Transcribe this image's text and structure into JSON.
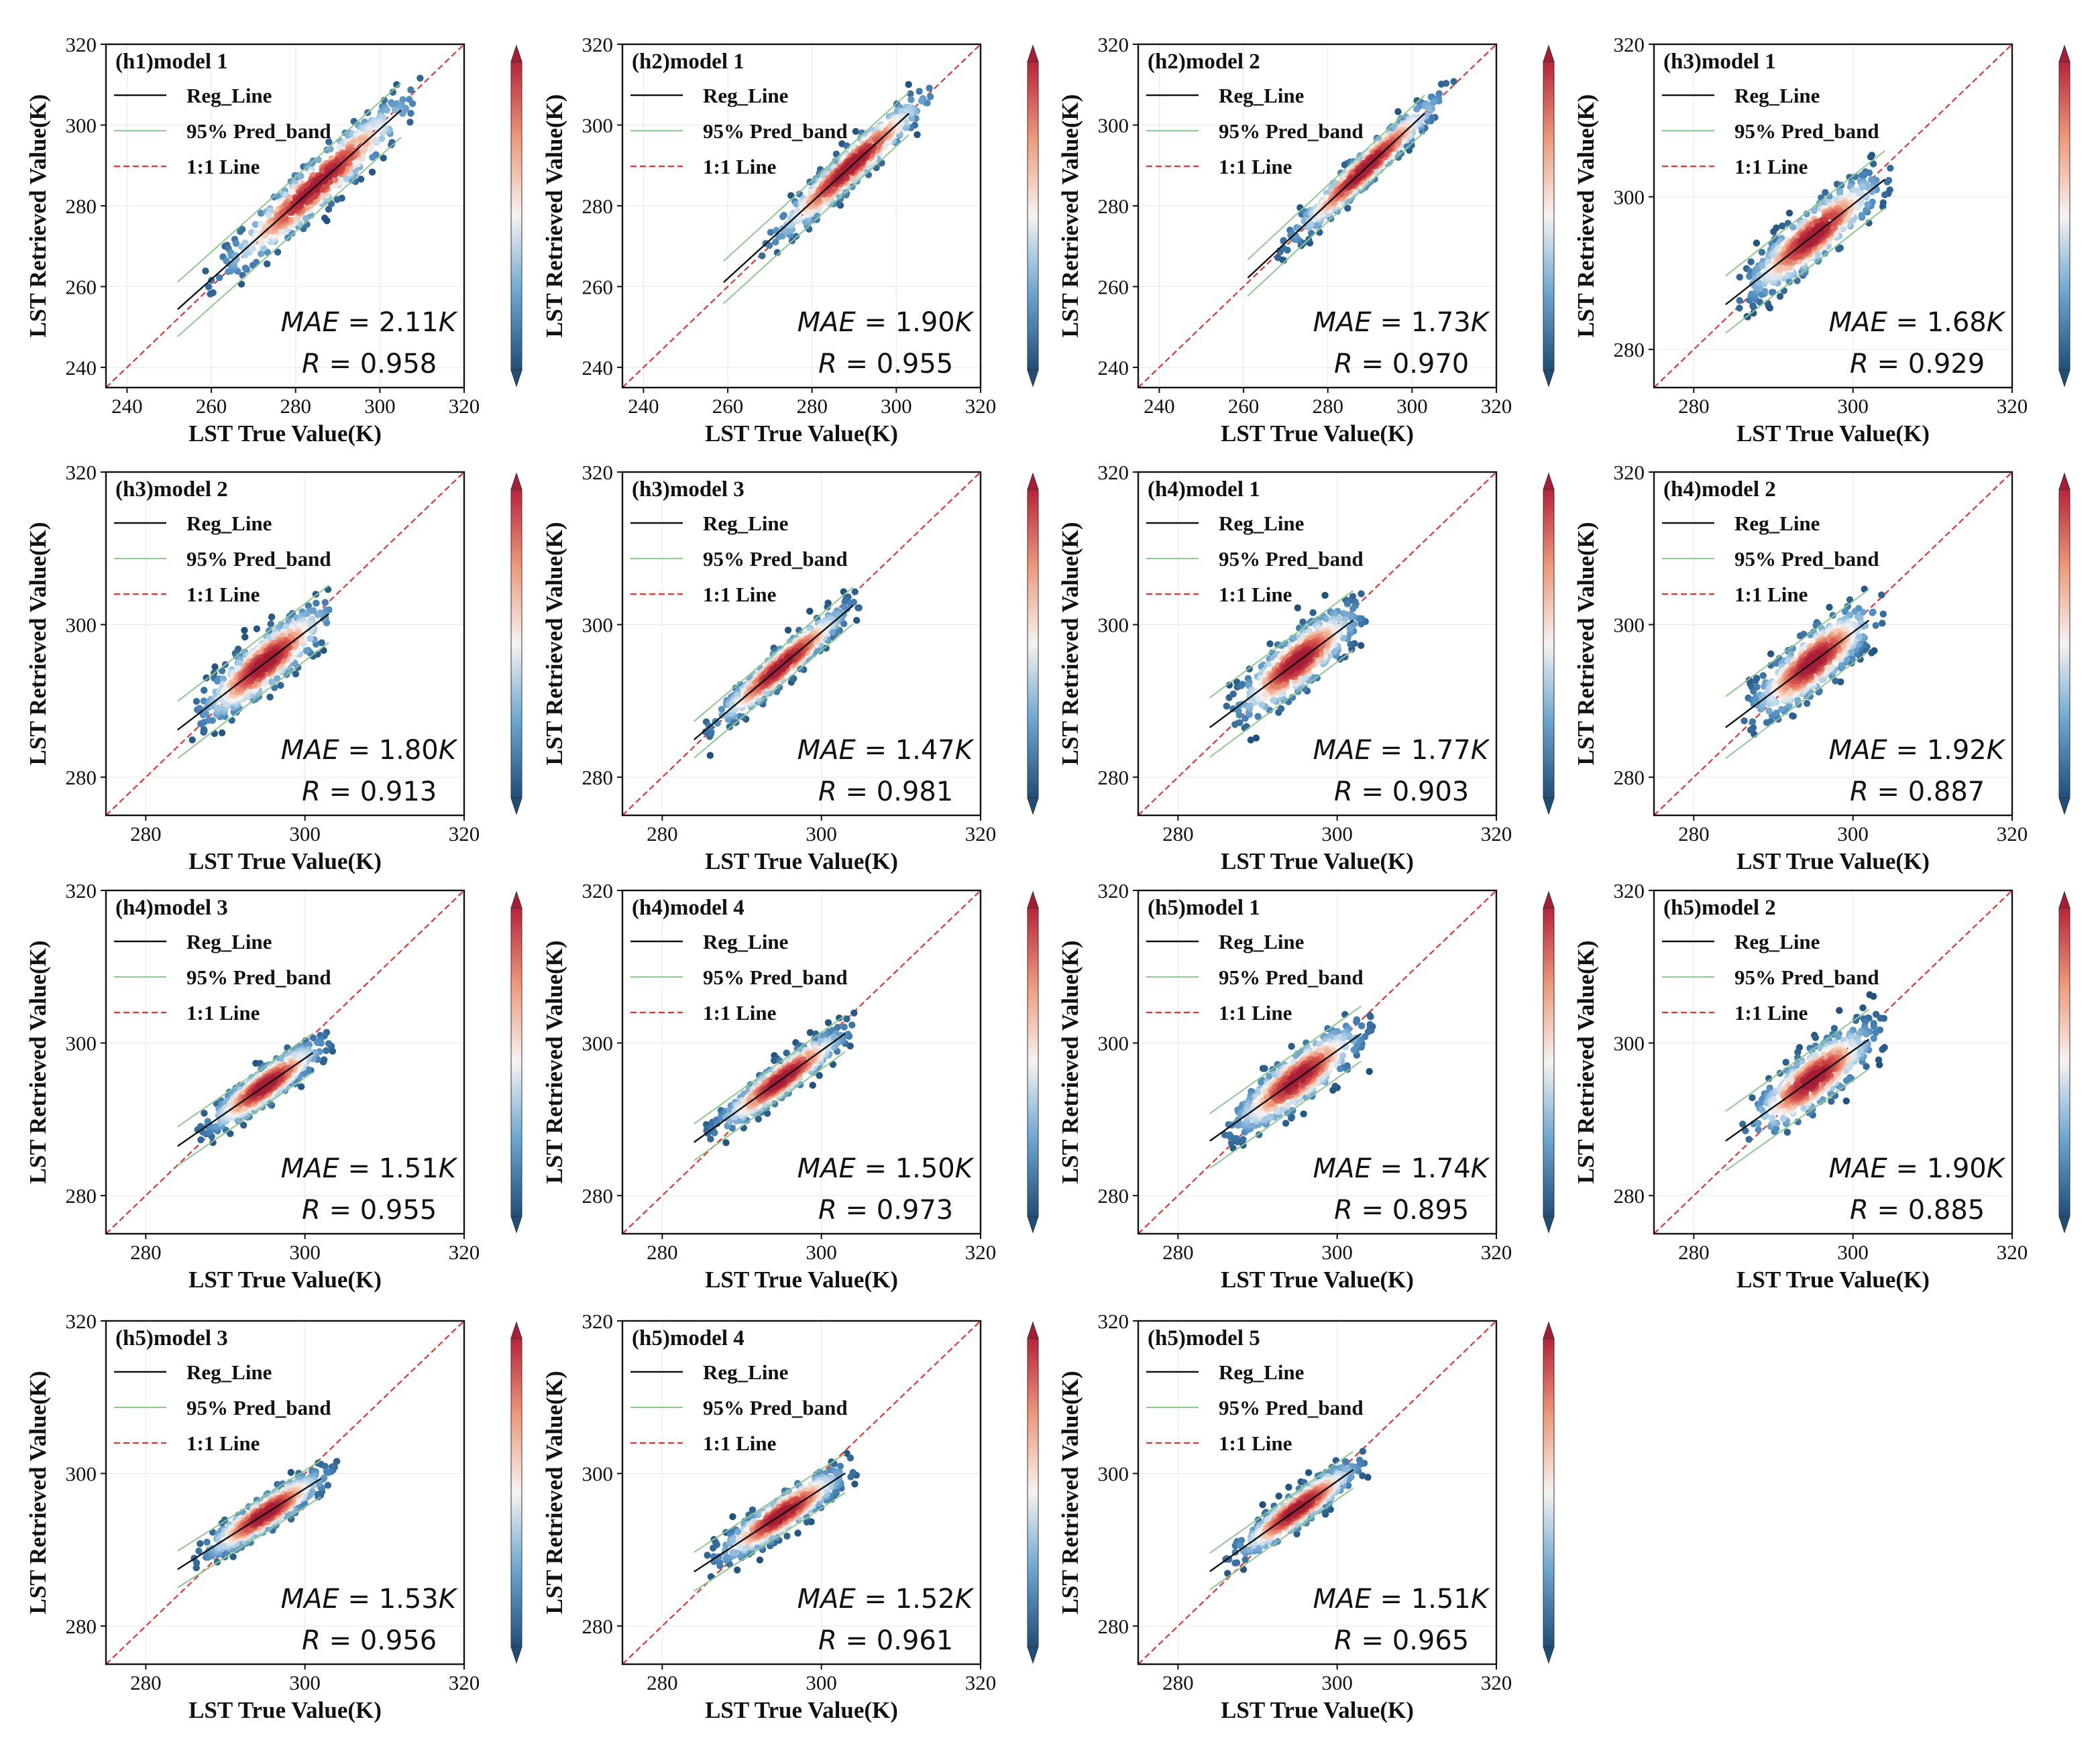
{
  "figure": {
    "common": {
      "x_label": "LST True Value(K)",
      "y_label": "LST Retrieved Value(K)",
      "legend": [
        "Reg_Line",
        "95% Pred_band",
        "1:1 Line"
      ],
      "mae_prefix": "MAE",
      "r_prefix": "R",
      "colors": {
        "reg": "#111111",
        "band": "#8fc88f",
        "oneone": "#e8312f",
        "point_low": "#2b5b93",
        "point_high": "#b8233a"
      }
    }
  },
  "chart_data": [
    {
      "type": "scatter",
      "title": "(h1)model 1",
      "xlim": [
        235,
        320
      ],
      "ylim": [
        235,
        320
      ],
      "x_ticks": [
        240,
        260,
        280,
        300,
        320
      ],
      "y_ticks": [
        240,
        260,
        280,
        300,
        320
      ],
      "mae": "2.11",
      "mae_unit": "K",
      "r": "0.958",
      "x_range": [
        252,
        305
      ],
      "center": 285,
      "spread": 4.5,
      "slope": 0.93,
      "intercept": 20
    },
    {
      "type": "scatter",
      "title": "(h2)model 1",
      "xlim": [
        235,
        320
      ],
      "ylim": [
        235,
        320
      ],
      "x_ticks": [
        240,
        260,
        280,
        300,
        320
      ],
      "y_ticks": [
        240,
        260,
        280,
        300,
        320
      ],
      "mae": "1.90",
      "mae_unit": "K",
      "r": "0.955",
      "x_range": [
        259,
        303
      ],
      "center": 289,
      "spread": 3.5,
      "slope": 0.95,
      "intercept": 15
    },
    {
      "type": "scatter",
      "title": "(h2)model 2",
      "xlim": [
        235,
        320
      ],
      "ylim": [
        235,
        320
      ],
      "x_ticks": [
        240,
        260,
        280,
        300,
        320
      ],
      "y_ticks": [
        240,
        260,
        280,
        300,
        320
      ],
      "mae": "1.73",
      "mae_unit": "K",
      "r": "0.970",
      "x_range": [
        261,
        303
      ],
      "center": 289,
      "spread": 3.0,
      "slope": 0.97,
      "intercept": 9
    },
    {
      "type": "scatter",
      "title": "(h3)model 1",
      "xlim": [
        275,
        320
      ],
      "ylim": [
        275,
        320
      ],
      "x_ticks": [
        280,
        300,
        320
      ],
      "y_ticks": [
        280,
        300,
        320
      ],
      "mae": "1.68",
      "mae_unit": "K",
      "r": "0.929",
      "x_range": [
        284,
        304
      ],
      "center": 295,
      "spread": 2.5,
      "slope": 0.82,
      "intercept": 53
    },
    {
      "type": "scatter",
      "title": "(h3)model 2",
      "xlim": [
        275,
        320
      ],
      "ylim": [
        275,
        320
      ],
      "x_ticks": [
        280,
        300,
        320
      ],
      "y_ticks": [
        280,
        300,
        320
      ],
      "mae": "1.80",
      "mae_unit": "K",
      "r": "0.913",
      "x_range": [
        284,
        303
      ],
      "center": 295,
      "spread": 2.5,
      "slope": 0.8,
      "intercept": 59
    },
    {
      "type": "scatter",
      "title": "(h3)model 3",
      "xlim": [
        275,
        320
      ],
      "ylim": [
        275,
        320
      ],
      "x_ticks": [
        280,
        300,
        320
      ],
      "y_ticks": [
        280,
        300,
        320
      ],
      "mae": "1.47",
      "mae_unit": "K",
      "r": "0.981",
      "x_range": [
        284,
        304
      ],
      "center": 295,
      "spread": 1.6,
      "slope": 0.88,
      "intercept": 35
    },
    {
      "type": "scatter",
      "title": "(h4)model 1",
      "xlim": [
        275,
        320
      ],
      "ylim": [
        275,
        320
      ],
      "x_ticks": [
        280,
        300,
        320
      ],
      "y_ticks": [
        280,
        300,
        320
      ],
      "mae": "1.77",
      "mae_unit": "K",
      "r": "0.903",
      "x_range": [
        284,
        302
      ],
      "center": 295,
      "spread": 2.6,
      "slope": 0.78,
      "intercept": 65
    },
    {
      "type": "scatter",
      "title": "(h4)model 2",
      "xlim": [
        275,
        320
      ],
      "ylim": [
        275,
        320
      ],
      "x_ticks": [
        280,
        300,
        320
      ],
      "y_ticks": [
        280,
        300,
        320
      ],
      "mae": "1.92",
      "mae_unit": "K",
      "r": "0.887",
      "x_range": [
        284,
        302
      ],
      "center": 295,
      "spread": 2.7,
      "slope": 0.78,
      "intercept": 65
    },
    {
      "type": "scatter",
      "title": "(h4)model 3",
      "xlim": [
        275,
        320
      ],
      "ylim": [
        275,
        320
      ],
      "x_ticks": [
        280,
        300,
        320
      ],
      "y_ticks": [
        280,
        300,
        320
      ],
      "mae": "1.51",
      "mae_unit": "K",
      "r": "0.955",
      "x_range": [
        284,
        301
      ],
      "center": 295,
      "spread": 1.7,
      "slope": 0.72,
      "intercept": 82
    },
    {
      "type": "scatter",
      "title": "(h4)model 4",
      "xlim": [
        275,
        320
      ],
      "ylim": [
        275,
        320
      ],
      "x_ticks": [
        280,
        300,
        320
      ],
      "y_ticks": [
        280,
        300,
        320
      ],
      "mae": "1.50",
      "mae_unit": "K",
      "r": "0.973",
      "x_range": [
        284,
        303
      ],
      "center": 295,
      "spread": 1.6,
      "slope": 0.75,
      "intercept": 74
    },
    {
      "type": "scatter",
      "title": "(h5)model 1",
      "xlim": [
        275,
        320
      ],
      "ylim": [
        275,
        320
      ],
      "x_ticks": [
        280,
        300,
        320
      ],
      "y_ticks": [
        280,
        300,
        320
      ],
      "mae": "1.74",
      "mae_unit": "K",
      "r": "0.895",
      "x_range": [
        284,
        303
      ],
      "center": 295,
      "spread": 2.4,
      "slope": 0.74,
      "intercept": 77
    },
    {
      "type": "scatter",
      "title": "(h5)model 2",
      "xlim": [
        275,
        320
      ],
      "ylim": [
        275,
        320
      ],
      "x_ticks": [
        280,
        300,
        320
      ],
      "y_ticks": [
        280,
        300,
        320
      ],
      "mae": "1.90",
      "mae_unit": "K",
      "r": "0.885",
      "x_range": [
        284,
        302
      ],
      "center": 295,
      "spread": 2.6,
      "slope": 0.74,
      "intercept": 77
    },
    {
      "type": "scatter",
      "title": "(h5)model 3",
      "xlim": [
        275,
        320
      ],
      "ylim": [
        275,
        320
      ],
      "x_ticks": [
        280,
        300,
        320
      ],
      "y_ticks": [
        280,
        300,
        320
      ],
      "mae": "1.53",
      "mae_unit": "K",
      "r": "0.956",
      "x_range": [
        284,
        302
      ],
      "center": 295,
      "spread": 1.6,
      "slope": 0.66,
      "intercept": 100
    },
    {
      "type": "scatter",
      "title": "(h5)model 4",
      "xlim": [
        275,
        320
      ],
      "ylim": [
        275,
        320
      ],
      "x_ticks": [
        280,
        300,
        320
      ],
      "y_ticks": [
        280,
        300,
        320
      ],
      "mae": "1.52",
      "mae_unit": "K",
      "r": "0.961",
      "x_range": [
        284,
        303
      ],
      "center": 295,
      "spread": 1.7,
      "slope": 0.68,
      "intercept": 94
    },
    {
      "type": "scatter",
      "title": "(h5)model 5",
      "xlim": [
        275,
        320
      ],
      "ylim": [
        275,
        320
      ],
      "x_ticks": [
        280,
        300,
        320
      ],
      "y_ticks": [
        280,
        300,
        320
      ],
      "mae": "1.51",
      "mae_unit": "K",
      "r": "0.965",
      "x_range": [
        284,
        302
      ],
      "center": 295,
      "spread": 1.6,
      "slope": 0.74,
      "intercept": 77
    }
  ]
}
